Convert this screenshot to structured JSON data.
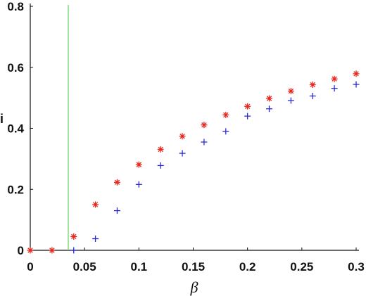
{
  "chart_data": {
    "type": "scatter",
    "title": "",
    "xlabel": "β",
    "ylabel": "i",
    "xlim": [
      0,
      0.3
    ],
    "ylim": [
      0,
      0.8
    ],
    "xticks": [
      "0",
      "0.05",
      "0.1",
      "0.15",
      "0.2",
      "0.25",
      "0.3"
    ],
    "yticks": [
      "0",
      "0.2",
      "0.4",
      "0.6",
      "0.8"
    ],
    "grid": false,
    "reference_line": {
      "x": 0.035,
      "color": "#7fdc7f"
    },
    "series": [
      {
        "marker": "asterisk",
        "color": "#e8261c",
        "points": [
          [
            0.0,
            0.0
          ],
          [
            0.02,
            0.0
          ],
          [
            0.04,
            0.045
          ],
          [
            0.06,
            0.15
          ],
          [
            0.08,
            0.223
          ],
          [
            0.1,
            0.281
          ],
          [
            0.12,
            0.331
          ],
          [
            0.14,
            0.374
          ],
          [
            0.16,
            0.411
          ],
          [
            0.18,
            0.444
          ],
          [
            0.2,
            0.472
          ],
          [
            0.22,
            0.498
          ],
          [
            0.24,
            0.522
          ],
          [
            0.26,
            0.543
          ],
          [
            0.28,
            0.562
          ],
          [
            0.3,
            0.579
          ]
        ]
      },
      {
        "marker": "plus",
        "color": "#2b2bd6",
        "points": [
          [
            0.04,
            0.0
          ],
          [
            0.06,
            0.038
          ],
          [
            0.08,
            0.13
          ],
          [
            0.1,
            0.216
          ],
          [
            0.12,
            0.278
          ],
          [
            0.14,
            0.318
          ],
          [
            0.16,
            0.355
          ],
          [
            0.18,
            0.39
          ],
          [
            0.2,
            0.44
          ],
          [
            0.22,
            0.464
          ],
          [
            0.24,
            0.491
          ],
          [
            0.26,
            0.506
          ],
          [
            0.28,
            0.531
          ],
          [
            0.3,
            0.544
          ]
        ]
      }
    ]
  }
}
